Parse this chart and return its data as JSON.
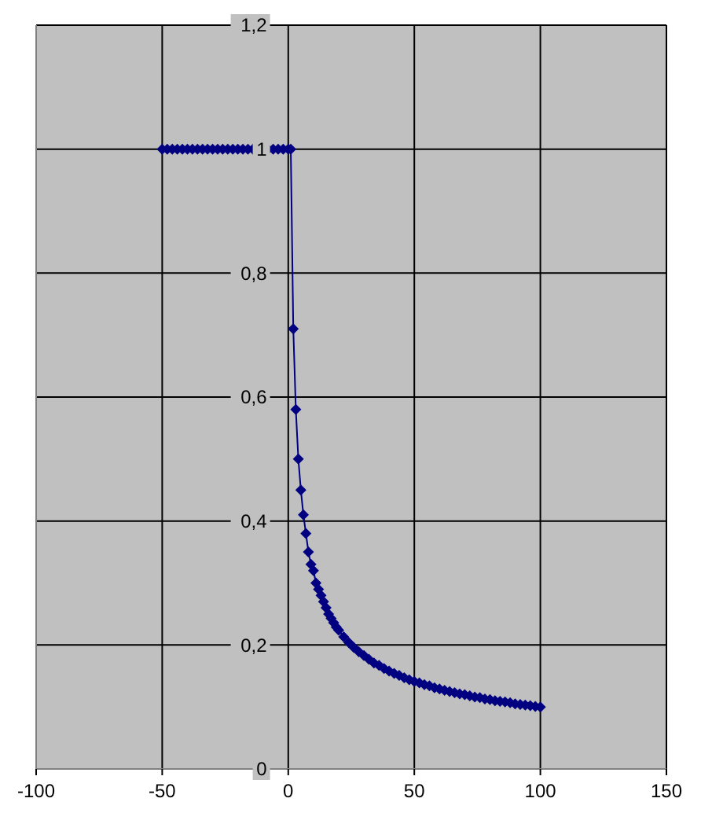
{
  "chart_data": {
    "type": "line",
    "x": [
      -50,
      -48,
      -46,
      -44,
      -42,
      -40,
      -38,
      -36,
      -34,
      -32,
      -30,
      -28,
      -26,
      -24,
      -22,
      -20,
      -18,
      -16,
      -14,
      -12,
      -10,
      -8,
      -6,
      -4,
      -2,
      0,
      1,
      2,
      3,
      4,
      5,
      6,
      7,
      8,
      9,
      10,
      11,
      12,
      13,
      14,
      15,
      16,
      17,
      18,
      19,
      20,
      22,
      24,
      26,
      28,
      30,
      32,
      34,
      36,
      38,
      40,
      42,
      44,
      46,
      48,
      50,
      52,
      54,
      56,
      58,
      60,
      62,
      64,
      66,
      68,
      70,
      72,
      74,
      76,
      78,
      80,
      82,
      84,
      86,
      88,
      90,
      92,
      94,
      96,
      98,
      100
    ],
    "series": [
      {
        "color": "#000080",
        "values": [
          1,
          1,
          1,
          1,
          1,
          1,
          1,
          1,
          1,
          1,
          1,
          1,
          1,
          1,
          1,
          1,
          1,
          1,
          1,
          1,
          1,
          1,
          1,
          1,
          1,
          1,
          1,
          0.71,
          0.58,
          0.5,
          0.45,
          0.41,
          0.38,
          0.35,
          0.33,
          0.32,
          0.3,
          0.29,
          0.28,
          0.27,
          0.26,
          0.25,
          0.243,
          0.236,
          0.229,
          0.224,
          0.213,
          0.204,
          0.196,
          0.189,
          0.183,
          0.177,
          0.171,
          0.167,
          0.162,
          0.158,
          0.154,
          0.151,
          0.147,
          0.144,
          0.141,
          0.139,
          0.136,
          0.134,
          0.131,
          0.129,
          0.127,
          0.125,
          0.123,
          0.121,
          0.12,
          0.118,
          0.116,
          0.115,
          0.113,
          0.112,
          0.11,
          0.109,
          0.108,
          0.107,
          0.105,
          0.104,
          0.103,
          0.102,
          0.101,
          0.1
        ]
      }
    ],
    "xlim": [
      -100,
      150
    ],
    "xticks": [
      -100,
      -50,
      0,
      50,
      100,
      150
    ],
    "ylim": [
      0,
      1.2
    ],
    "yticks": [
      0,
      {
        "value": 0.2,
        "label": "0,2"
      },
      {
        "value": 0.4,
        "label": "0,4"
      },
      {
        "value": 0.6,
        "label": "0,6"
      },
      {
        "value": 0.8,
        "label": "0,8"
      },
      1,
      {
        "value": 1.2,
        "label": "1,2"
      }
    ],
    "grid": true,
    "marker": "diamond",
    "line_style": "solid",
    "legend": false
  }
}
